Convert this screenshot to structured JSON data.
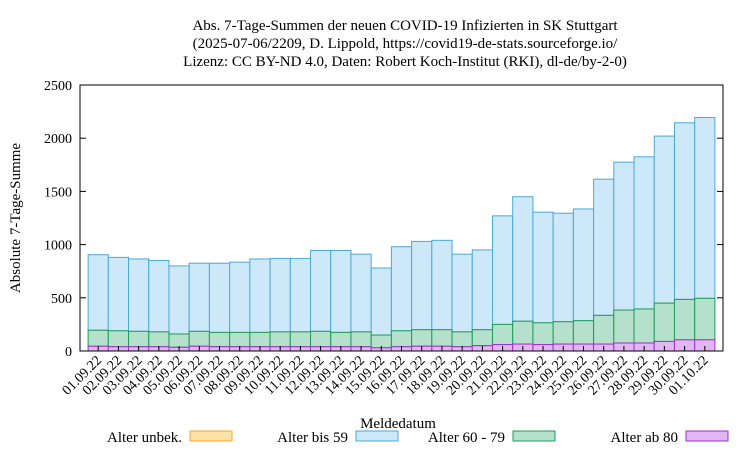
{
  "chart_data": {
    "type": "bar",
    "stacked": true,
    "title_lines": [
      "Abs. 7-Tage-Summen der neuen COVID-19 Infizierten in SK Stuttgart",
      "(2025-07-06/2209, D. Lippold, https://covid19-de-stats.sourceforge.io/",
      "Lizenz: CC BY-ND 4.0, Daten: Robert Koch-Institut (RKI), dl-de/by-2-0)"
    ],
    "xlabel": "Meldedatum",
    "ylabel": "Absolute 7-Tage-Summe",
    "ylim": [
      0,
      2500
    ],
    "yticks": [
      "0",
      "500",
      "1000",
      "1500",
      "2000",
      "2500"
    ],
    "grid": false,
    "legend_position": "bottom",
    "categories": [
      "01.09.22",
      "02.09.22",
      "03.09.22",
      "04.09.22",
      "05.09.22",
      "06.09.22",
      "07.09.22",
      "08.09.22",
      "09.09.22",
      "10.09.22",
      "11.09.22",
      "12.09.22",
      "13.09.22",
      "14.09.22",
      "15.09.22",
      "16.09.22",
      "17.09.22",
      "18.09.22",
      "19.09.22",
      "20.09.22",
      "21.09.22",
      "22.09.22",
      "23.09.22",
      "24.09.22",
      "25.09.22",
      "26.09.22",
      "27.09.22",
      "28.09.22",
      "29.09.22",
      "30.09.22",
      "01.10.22"
    ],
    "series": [
      {
        "name": "Alter unbek.",
        "color": "#f5a623",
        "fill": "#fde3a7",
        "values": [
          0,
          0,
          0,
          0,
          0,
          0,
          0,
          0,
          0,
          0,
          0,
          0,
          0,
          0,
          0,
          0,
          0,
          0,
          0,
          0,
          0,
          0,
          0,
          0,
          0,
          0,
          0,
          0,
          0,
          0,
          0
        ]
      },
      {
        "name": "Alter bis 59",
        "color": "#4ca9d8",
        "fill": "#cde8f8",
        "values": [
          710,
          690,
          680,
          670,
          640,
          640,
          650,
          660,
          690,
          690,
          690,
          760,
          770,
          730,
          630,
          790,
          830,
          840,
          730,
          750,
          1020,
          1170,
          1040,
          1020,
          1050,
          1280,
          1390,
          1430,
          1570,
          1660,
          1700
        ]
      },
      {
        "name": "Alter 60 - 79",
        "color": "#1f9a5a",
        "fill": "#b5e1cc",
        "values": [
          150,
          150,
          145,
          140,
          125,
          140,
          135,
          135,
          135,
          140,
          140,
          145,
          135,
          140,
          120,
          150,
          155,
          155,
          140,
          150,
          190,
          215,
          205,
          210,
          220,
          270,
          310,
          320,
          360,
          380,
          390
        ]
      },
      {
        "name": "Alter ab 80",
        "color": "#9d2fc8",
        "fill": "#e2b6f2",
        "values": [
          45,
          40,
          40,
          40,
          35,
          45,
          40,
          40,
          40,
          40,
          40,
          40,
          40,
          40,
          30,
          40,
          45,
          45,
          40,
          50,
          60,
          65,
          60,
          65,
          65,
          65,
          75,
          75,
          90,
          105,
          105
        ]
      }
    ]
  }
}
